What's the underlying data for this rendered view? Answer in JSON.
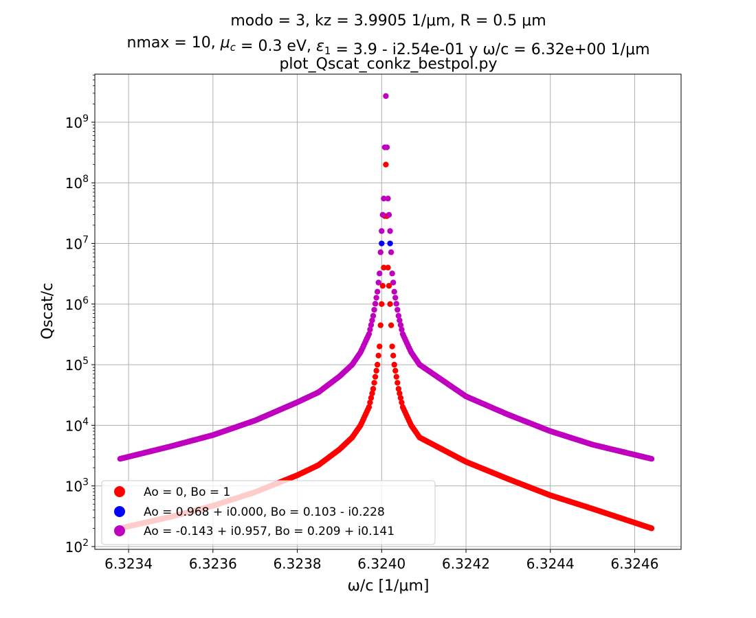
{
  "chart_data": {
    "type": "scatter",
    "title": [
      "modo = 3, kz = 3.9905 1/μm, R = 0.5 μm",
      "nmax = 10, μc = 0.3 eV, ε1 = 3.9 - i2.54e-01 y ω/c = 6.32e+00 1/μm",
      "plot_Qscat_conkz_bestpol.py"
    ],
    "xlabel": "ω/c [1/μm]",
    "ylabel": "Qscat/c",
    "xlim": [
      6.32332,
      6.32471
    ],
    "ylim": [
      90,
      6200000000.0
    ],
    "yscale": "log",
    "grid": true,
    "legend_position": "lower-left",
    "x_ticks": [
      {
        "value": 6.3234,
        "label": "6.3234"
      },
      {
        "value": 6.3236,
        "label": "6.3236"
      },
      {
        "value": 6.3238,
        "label": "6.3238"
      },
      {
        "value": 6.324,
        "label": "6.3240"
      },
      {
        "value": 6.3242,
        "label": "6.3242"
      },
      {
        "value": 6.3244,
        "label": "6.3244"
      },
      {
        "value": 6.3246,
        "label": "6.3246"
      }
    ],
    "y_ticks": [
      {
        "value": 100,
        "base": "10",
        "exp": "2"
      },
      {
        "value": 1000,
        "base": "10",
        "exp": "3"
      },
      {
        "value": 10000,
        "base": "10",
        "exp": "4"
      },
      {
        "value": 100000,
        "base": "10",
        "exp": "5"
      },
      {
        "value": 1000000,
        "base": "10",
        "exp": "6"
      },
      {
        "value": 10000000,
        "base": "10",
        "exp": "7"
      },
      {
        "value": 100000000,
        "base": "10",
        "exp": "8"
      },
      {
        "value": 1000000000,
        "base": "10",
        "exp": "9"
      }
    ],
    "resonance_x": 6.32401,
    "series": [
      {
        "name": "Ao = 0, Bo = 1",
        "color": "#ff0000",
        "points": [
          [
            6.32338,
            200
          ],
          [
            6.3235,
            310
          ],
          [
            6.3236,
            470
          ],
          [
            6.3237,
            790
          ],
          [
            6.3238,
            1500
          ],
          [
            6.32385,
            2200
          ],
          [
            6.3239,
            4000
          ],
          [
            6.32393,
            6300
          ],
          [
            6.32395,
            10000
          ],
          [
            6.32397,
            20000
          ],
          [
            6.32398,
            40000
          ],
          [
            6.32399,
            100000
          ],
          [
            6.323995,
            200000
          ],
          [
            6.324,
            1000000
          ],
          [
            6.324005,
            4000000
          ],
          [
            6.32401,
            200000000
          ],
          [
            6.324015,
            4000000
          ],
          [
            6.32402,
            1000000
          ],
          [
            6.324025,
            200000
          ],
          [
            6.32403,
            100000
          ],
          [
            6.32404,
            40000
          ],
          [
            6.32405,
            20000
          ],
          [
            6.32407,
            10000
          ],
          [
            6.32409,
            6300
          ],
          [
            6.3242,
            2500
          ],
          [
            6.3243,
            1300
          ],
          [
            6.3244,
            700
          ],
          [
            6.3245,
            420
          ],
          [
            6.32464,
            200
          ]
        ]
      },
      {
        "name": "Ao = 0.968 + i0.000, Bo = 0.103 - i0.228",
        "color": "#0000ff",
        "points": [
          [
            6.324,
            10000000
          ],
          [
            6.32402,
            10000000
          ]
        ]
      },
      {
        "name": "Ao = -0.143 + i0.957, Bo = 0.209 + i0.141",
        "color": "#bf00bf",
        "points": [
          [
            6.32338,
            2800
          ],
          [
            6.3235,
            4500
          ],
          [
            6.3236,
            6900
          ],
          [
            6.3237,
            12000
          ],
          [
            6.3238,
            24000
          ],
          [
            6.32385,
            35000
          ],
          [
            6.3239,
            64000
          ],
          [
            6.32393,
            100000
          ],
          [
            6.32395,
            160000
          ],
          [
            6.32397,
            320000
          ],
          [
            6.32398,
            640000
          ],
          [
            6.32399,
            1600000
          ],
          [
            6.323995,
            3200000
          ],
          [
            6.324,
            16000000
          ],
          [
            6.324005,
            55000000
          ],
          [
            6.32401,
            2700000000
          ],
          [
            6.324015,
            55000000
          ],
          [
            6.32402,
            16000000
          ],
          [
            6.324025,
            3200000
          ],
          [
            6.32403,
            1600000
          ],
          [
            6.32404,
            640000
          ],
          [
            6.32405,
            320000
          ],
          [
            6.32407,
            160000
          ],
          [
            6.32409,
            100000
          ],
          [
            6.3242,
            30000
          ],
          [
            6.3243,
            15000
          ],
          [
            6.3244,
            8000
          ],
          [
            6.3245,
            4800
          ],
          [
            6.32464,
            2800
          ]
        ]
      }
    ]
  }
}
